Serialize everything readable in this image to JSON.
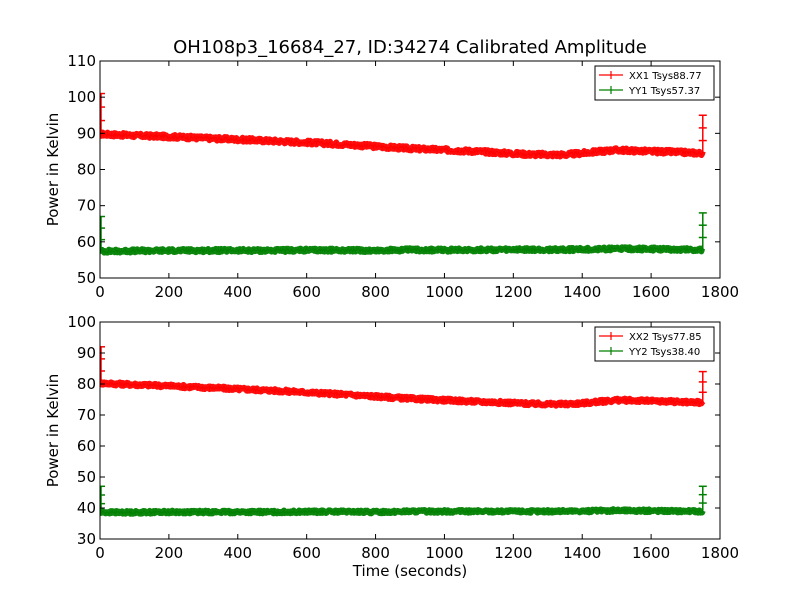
{
  "chart_data": [
    {
      "type": "line",
      "title": "OH108p3_16684_27, ID:34274 Calibrated Amplitude",
      "xlabel": "",
      "ylabel": "Power in Kelvin",
      "xlim": [
        0,
        1800
      ],
      "ylim": [
        50,
        110
      ],
      "xticks": [
        "0",
        "200",
        "400",
        "600",
        "800",
        "1000",
        "1200",
        "1400",
        "1600",
        "1800"
      ],
      "yticks": [
        "50",
        "60",
        "70",
        "80",
        "90",
        "100",
        "110"
      ],
      "legend_position": "top-right",
      "grid": false,
      "series": [
        {
          "name": "XX1 Tsys88.77",
          "color": "#ff0000",
          "x": [
            0,
            100,
            200,
            300,
            400,
            500,
            600,
            700,
            800,
            900,
            1000,
            1100,
            1200,
            1250,
            1300,
            1350,
            1400,
            1450,
            1500,
            1550,
            1600,
            1650,
            1700,
            1750
          ],
          "y": [
            89.8,
            89.4,
            89.1,
            88.7,
            88.3,
            87.9,
            87.5,
            87.0,
            86.4,
            85.8,
            85.4,
            85.0,
            84.4,
            84.2,
            84.1,
            84.1,
            84.5,
            85.0,
            85.4,
            85.2,
            85.0,
            84.9,
            84.7,
            84.5
          ],
          "spikes": [
            {
              "x": 0,
              "y": 101
            },
            {
              "x": 1750,
              "y": 95
            }
          ]
        },
        {
          "name": "YY1 Tsys57.37",
          "color": "#008000",
          "x": [
            0,
            100,
            200,
            300,
            400,
            500,
            600,
            700,
            800,
            900,
            1000,
            1100,
            1200,
            1300,
            1400,
            1500,
            1600,
            1700,
            1750
          ],
          "y": [
            57.4,
            57.5,
            57.6,
            57.6,
            57.6,
            57.6,
            57.7,
            57.7,
            57.6,
            57.8,
            57.7,
            57.8,
            57.8,
            57.8,
            57.9,
            58.1,
            58.0,
            57.9,
            57.8
          ],
          "spikes": [
            {
              "x": 0,
              "y": 67
            },
            {
              "x": 1750,
              "y": 68
            }
          ]
        }
      ]
    },
    {
      "type": "line",
      "title": "",
      "xlabel": "Time (seconds)",
      "ylabel": "Power in Kelvin",
      "xlim": [
        0,
        1800
      ],
      "ylim": [
        30,
        100
      ],
      "xticks": [
        "0",
        "200",
        "400",
        "600",
        "800",
        "1000",
        "1200",
        "1400",
        "1600",
        "1800"
      ],
      "yticks": [
        "30",
        "40",
        "50",
        "60",
        "70",
        "80",
        "90",
        "100"
      ],
      "legend_position": "top-right",
      "grid": false,
      "series": [
        {
          "name": "XX2 Tsys77.85",
          "color": "#ff0000",
          "x": [
            0,
            100,
            200,
            300,
            400,
            500,
            600,
            700,
            800,
            900,
            1000,
            1100,
            1200,
            1250,
            1300,
            1350,
            1400,
            1450,
            1500,
            1550,
            1600,
            1650,
            1700,
            1750
          ],
          "y": [
            80.3,
            79.8,
            79.4,
            78.9,
            78.4,
            77.9,
            77.3,
            76.7,
            76.0,
            75.3,
            74.8,
            74.3,
            73.9,
            73.6,
            73.5,
            73.5,
            73.8,
            74.3,
            74.8,
            74.7,
            74.5,
            74.4,
            74.2,
            74.0
          ],
          "spikes": [
            {
              "x": 0,
              "y": 92
            },
            {
              "x": 1750,
              "y": 84
            }
          ]
        },
        {
          "name": "YY2 Tsys38.40",
          "color": "#008000",
          "x": [
            0,
            100,
            200,
            300,
            400,
            500,
            600,
            700,
            800,
            900,
            1000,
            1100,
            1200,
            1300,
            1400,
            1500,
            1600,
            1700,
            1750
          ],
          "y": [
            38.6,
            38.6,
            38.7,
            38.7,
            38.7,
            38.7,
            38.8,
            38.8,
            38.7,
            38.9,
            38.9,
            38.9,
            38.9,
            38.9,
            39.0,
            39.2,
            39.1,
            39.0,
            38.9
          ],
          "spikes": [
            {
              "x": 0,
              "y": 47
            },
            {
              "x": 1750,
              "y": 47
            }
          ]
        }
      ]
    }
  ]
}
